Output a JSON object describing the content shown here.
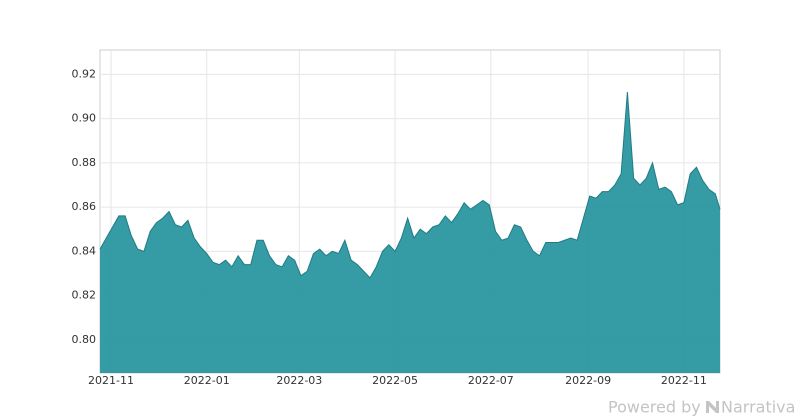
{
  "chart_data": {
    "type": "area",
    "color": "#2a969f",
    "line_color": "#1f7c84",
    "grid": true,
    "x": [
      "2021-10-25",
      "2021-10-29",
      "2021-11-02",
      "2021-11-06",
      "2021-11-10",
      "2021-11-14",
      "2021-11-18",
      "2021-11-22",
      "2021-11-26",
      "2021-11-30",
      "2021-12-04",
      "2021-12-08",
      "2021-12-12",
      "2021-12-16",
      "2021-12-20",
      "2021-12-24",
      "2021-12-28",
      "2022-01-01",
      "2022-01-05",
      "2022-01-09",
      "2022-01-13",
      "2022-01-17",
      "2022-01-21",
      "2022-01-25",
      "2022-01-29",
      "2022-02-02",
      "2022-02-06",
      "2022-02-10",
      "2022-02-14",
      "2022-02-18",
      "2022-02-22",
      "2022-02-26",
      "2022-03-02",
      "2022-03-06",
      "2022-03-10",
      "2022-03-14",
      "2022-03-18",
      "2022-03-22",
      "2022-03-26",
      "2022-03-30",
      "2022-04-03",
      "2022-04-07",
      "2022-04-11",
      "2022-04-15",
      "2022-04-19",
      "2022-04-23",
      "2022-04-27",
      "2022-05-01",
      "2022-05-05",
      "2022-05-09",
      "2022-05-13",
      "2022-05-17",
      "2022-05-21",
      "2022-05-25",
      "2022-05-29",
      "2022-06-02",
      "2022-06-06",
      "2022-06-10",
      "2022-06-14",
      "2022-06-18",
      "2022-06-22",
      "2022-06-26",
      "2022-06-30",
      "2022-07-04",
      "2022-07-08",
      "2022-07-12",
      "2022-07-16",
      "2022-07-20",
      "2022-07-24",
      "2022-07-28",
      "2022-08-01",
      "2022-08-05",
      "2022-08-09",
      "2022-08-13",
      "2022-08-17",
      "2022-08-21",
      "2022-08-25",
      "2022-08-29",
      "2022-09-02",
      "2022-09-06",
      "2022-09-10",
      "2022-09-14",
      "2022-09-18",
      "2022-09-22",
      "2022-09-26",
      "2022-09-30",
      "2022-10-04",
      "2022-10-08",
      "2022-10-12",
      "2022-10-16",
      "2022-10-20",
      "2022-10-24",
      "2022-10-28",
      "2022-11-01",
      "2022-11-05",
      "2022-11-09",
      "2022-11-13",
      "2022-11-17",
      "2022-11-21",
      "2022-11-24"
    ],
    "values": [
      0.841,
      0.846,
      0.851,
      0.856,
      0.856,
      0.847,
      0.841,
      0.84,
      0.849,
      0.853,
      0.855,
      0.858,
      0.852,
      0.851,
      0.854,
      0.846,
      0.842,
      0.839,
      0.835,
      0.834,
      0.836,
      0.833,
      0.838,
      0.834,
      0.834,
      0.845,
      0.845,
      0.838,
      0.834,
      0.833,
      0.838,
      0.836,
      0.829,
      0.831,
      0.839,
      0.841,
      0.838,
      0.84,
      0.839,
      0.845,
      0.836,
      0.834,
      0.831,
      0.828,
      0.833,
      0.84,
      0.843,
      0.84,
      0.846,
      0.855,
      0.846,
      0.85,
      0.848,
      0.851,
      0.852,
      0.856,
      0.853,
      0.857,
      0.862,
      0.859,
      0.861,
      0.863,
      0.861,
      0.849,
      0.845,
      0.846,
      0.852,
      0.851,
      0.845,
      0.84,
      0.838,
      0.844,
      0.844,
      0.844,
      0.845,
      0.846,
      0.845,
      0.855,
      0.865,
      0.864,
      0.867,
      0.867,
      0.87,
      0.875,
      0.912,
      0.873,
      0.87,
      0.873,
      0.88,
      0.868,
      0.869,
      0.867,
      0.861,
      0.862,
      0.875,
      0.878,
      0.872,
      0.868,
      0.866,
      0.859
    ],
    "xlim": [
      "2021-10-25",
      "2022-11-24"
    ],
    "xticks": [
      {
        "value": "2021-11-01",
        "label": "2021-11"
      },
      {
        "value": "2022-01-01",
        "label": "2022-01"
      },
      {
        "value": "2022-03-01",
        "label": "2022-03"
      },
      {
        "value": "2022-05-01",
        "label": "2022-05"
      },
      {
        "value": "2022-07-01",
        "label": "2022-07"
      },
      {
        "value": "2022-09-01",
        "label": "2022-09"
      },
      {
        "value": "2022-11-01",
        "label": "2022-11"
      }
    ],
    "ylim": [
      0.785,
      0.931
    ],
    "yticks": [
      {
        "value": 0.8,
        "label": "0.80"
      },
      {
        "value": 0.82,
        "label": "0.82"
      },
      {
        "value": 0.84,
        "label": "0.84"
      },
      {
        "value": 0.86,
        "label": "0.86"
      },
      {
        "value": 0.88,
        "label": "0.88"
      },
      {
        "value": 0.9,
        "label": "0.90"
      },
      {
        "value": 0.92,
        "label": "0.92"
      }
    ]
  },
  "credit": {
    "prefix": "Powered by",
    "brand": "Narrativa"
  }
}
